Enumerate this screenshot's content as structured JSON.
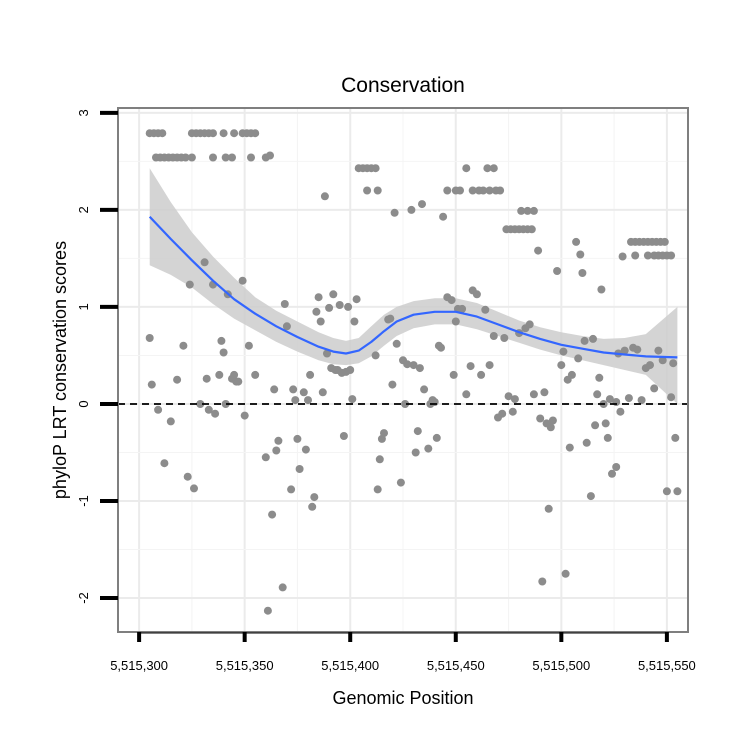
{
  "chart_data": {
    "type": "scatter",
    "title": "Conservation",
    "xlabel": "Genomic Position",
    "ylabel": "phyloP LRT conservation scores",
    "xlim": [
      5515290,
      5515560
    ],
    "ylim": [
      -2.35,
      3.05
    ],
    "x_ticks": [
      5515300,
      5515350,
      5515400,
      5515450,
      5515500,
      5515550
    ],
    "x_tick_labels": [
      "5,515,300",
      "5,515,350",
      "5,515,400",
      "5,515,450",
      "5,515,500",
      "5,515,550"
    ],
    "y_ticks": [
      -2,
      -1,
      0,
      1,
      2,
      3
    ],
    "y_tick_labels": [
      "-2",
      "-1",
      "0",
      "1",
      "2",
      "3"
    ],
    "grid": true,
    "reference_line": {
      "y": 0,
      "style": "dashed",
      "color": "#000000"
    },
    "colors": {
      "points": "#8c8c8c",
      "smooth": "#3366ff",
      "ribbon": "#cccccc",
      "panel_border": "#7f7f7f",
      "grid": "#ebebeb"
    },
    "points": [
      [
        5515305,
        2.79
      ],
      [
        5515307,
        2.79
      ],
      [
        5515309,
        2.79
      ],
      [
        5515311,
        2.79
      ],
      [
        5515308,
        2.54
      ],
      [
        5515310,
        2.54
      ],
      [
        5515312,
        2.54
      ],
      [
        5515314,
        2.54
      ],
      [
        5515316,
        2.54
      ],
      [
        5515318,
        2.54
      ],
      [
        5515320,
        2.54
      ],
      [
        5515322,
        2.54
      ],
      [
        5515325,
        2.54
      ],
      [
        5515325,
        2.79
      ],
      [
        5515327,
        2.79
      ],
      [
        5515329,
        2.79
      ],
      [
        5515331,
        2.79
      ],
      [
        5515333,
        2.79
      ],
      [
        5515335,
        2.79
      ],
      [
        5515340,
        2.79
      ],
      [
        5515345,
        2.79
      ],
      [
        5515349,
        2.79
      ],
      [
        5515351,
        2.79
      ],
      [
        5515353,
        2.79
      ],
      [
        5515355,
        2.79
      ],
      [
        5515335,
        2.54
      ],
      [
        5515341,
        2.54
      ],
      [
        5515344,
        2.54
      ],
      [
        5515353,
        2.54
      ],
      [
        5515360,
        2.54
      ],
      [
        5515362,
        2.56
      ],
      [
        5515305,
        0.68
      ],
      [
        5515306,
        0.2
      ],
      [
        5515309,
        -0.06
      ],
      [
        5515312,
        -0.61
      ],
      [
        5515315,
        -0.18
      ],
      [
        5515318,
        0.25
      ],
      [
        5515321,
        0.6
      ],
      [
        5515323,
        -0.75
      ],
      [
        5515324,
        1.23
      ],
      [
        5515326,
        -0.87
      ],
      [
        5515329,
        0.0
      ],
      [
        5515331,
        1.46
      ],
      [
        5515332,
        0.26
      ],
      [
        5515333,
        -0.06
      ],
      [
        5515335,
        1.23
      ],
      [
        5515336,
        -0.1
      ],
      [
        5515338,
        0.3
      ],
      [
        5515339,
        0.65
      ],
      [
        5515340,
        0.53
      ],
      [
        5515341,
        0.0
      ],
      [
        5515342,
        1.13
      ],
      [
        5515344,
        0.26
      ],
      [
        5515345,
        0.3
      ],
      [
        5515346,
        0.23
      ],
      [
        5515347,
        0.23
      ],
      [
        5515349,
        1.27
      ],
      [
        5515350,
        -0.12
      ],
      [
        5515352,
        0.6
      ],
      [
        5515355,
        0.3
      ],
      [
        5515360,
        -0.55
      ],
      [
        5515361,
        -2.13
      ],
      [
        5515363,
        -1.14
      ],
      [
        5515364,
        0.15
      ],
      [
        5515365,
        -0.48
      ],
      [
        5515366,
        -0.38
      ],
      [
        5515368,
        -1.89
      ],
      [
        5515369,
        1.03
      ],
      [
        5515370,
        0.8
      ],
      [
        5515372,
        -0.88
      ],
      [
        5515373,
        0.15
      ],
      [
        5515374,
        0.04
      ],
      [
        5515375,
        -0.36
      ],
      [
        5515376,
        -0.67
      ],
      [
        5515378,
        0.12
      ],
      [
        5515379,
        -0.47
      ],
      [
        5515380,
        0.04
      ],
      [
        5515381,
        0.3
      ],
      [
        5515382,
        -1.06
      ],
      [
        5515383,
        -0.96
      ],
      [
        5515384,
        0.95
      ],
      [
        5515385,
        1.1
      ],
      [
        5515386,
        0.85
      ],
      [
        5515387,
        0.12
      ],
      [
        5515388,
        2.14
      ],
      [
        5515389,
        0.52
      ],
      [
        5515390,
        0.99
      ],
      [
        5515391,
        0.37
      ],
      [
        5515392,
        1.13
      ],
      [
        5515393,
        0.35
      ],
      [
        5515394,
        0.35
      ],
      [
        5515395,
        1.02
      ],
      [
        5515396,
        0.32
      ],
      [
        5515397,
        -0.33
      ],
      [
        5515398,
        0.33
      ],
      [
        5515399,
        1.0
      ],
      [
        5515400,
        0.35
      ],
      [
        5515401,
        0.05
      ],
      [
        5515402,
        0.85
      ],
      [
        5515403,
        1.08
      ],
      [
        5515404,
        2.43
      ],
      [
        5515406,
        2.43
      ],
      [
        5515408,
        2.43
      ],
      [
        5515410,
        2.43
      ],
      [
        5515412,
        2.43
      ],
      [
        5515408,
        2.2
      ],
      [
        5515413,
        2.2
      ],
      [
        5515412,
        0.5
      ],
      [
        5515413,
        -0.88
      ],
      [
        5515414,
        -0.57
      ],
      [
        5515415,
        -0.36
      ],
      [
        5515416,
        -0.3
      ],
      [
        5515418,
        0.87
      ],
      [
        5515419,
        0.88
      ],
      [
        5515420,
        0.2
      ],
      [
        5515421,
        1.97
      ],
      [
        5515422,
        0.62
      ],
      [
        5515424,
        -0.81
      ],
      [
        5515425,
        0.45
      ],
      [
        5515426,
        0.0
      ],
      [
        5515427,
        0.41
      ],
      [
        5515429,
        2.0
      ],
      [
        5515430,
        0.4
      ],
      [
        5515431,
        -0.5
      ],
      [
        5515432,
        -0.28
      ],
      [
        5515433,
        0.37
      ],
      [
        5515434,
        2.06
      ],
      [
        5515435,
        0.15
      ],
      [
        5515437,
        -0.46
      ],
      [
        5515438,
        0.0
      ],
      [
        5515439,
        0.04
      ],
      [
        5515440,
        0.02
      ],
      [
        5515441,
        -0.35
      ],
      [
        5515442,
        0.6
      ],
      [
        5515443,
        0.58
      ],
      [
        5515444,
        1.93
      ],
      [
        5515446,
        2.2
      ],
      [
        5515450,
        2.2
      ],
      [
        5515452,
        2.2
      ],
      [
        5515455,
        2.43
      ],
      [
        5515458,
        2.2
      ],
      [
        5515461,
        2.2
      ],
      [
        5515463,
        2.2
      ],
      [
        5515465,
        2.43
      ],
      [
        5515466,
        2.2
      ],
      [
        5515468,
        2.43
      ],
      [
        5515469,
        2.2
      ],
      [
        5515471,
        2.2
      ],
      [
        5515446,
        1.1
      ],
      [
        5515448,
        1.07
      ],
      [
        5515449,
        0.3
      ],
      [
        5515450,
        0.85
      ],
      [
        5515451,
        0.98
      ],
      [
        5515453,
        0.98
      ],
      [
        5515455,
        0.1
      ],
      [
        5515457,
        0.39
      ],
      [
        5515458,
        1.17
      ],
      [
        5515460,
        1.13
      ],
      [
        5515462,
        0.3
      ],
      [
        5515464,
        0.97
      ],
      [
        5515466,
        0.4
      ],
      [
        5515468,
        0.7
      ],
      [
        5515470,
        -0.14
      ],
      [
        5515472,
        -0.1
      ],
      [
        5515473,
        0.68
      ],
      [
        5515475,
        0.08
      ],
      [
        5515477,
        -0.08
      ],
      [
        5515478,
        0.05
      ],
      [
        5515474,
        1.8
      ],
      [
        5515476,
        1.8
      ],
      [
        5515478,
        1.8
      ],
      [
        5515480,
        1.8
      ],
      [
        5515482,
        1.8
      ],
      [
        5515484,
        1.8
      ],
      [
        5515486,
        1.8
      ],
      [
        5515481,
        1.99
      ],
      [
        5515484,
        1.99
      ],
      [
        5515487,
        1.99
      ],
      [
        5515480,
        0.73
      ],
      [
        5515483,
        0.78
      ],
      [
        5515485,
        0.82
      ],
      [
        5515487,
        0.1
      ],
      [
        5515489,
        1.58
      ],
      [
        5515490,
        -0.15
      ],
      [
        5515491,
        -1.83
      ],
      [
        5515492,
        0.12
      ],
      [
        5515493,
        -0.2
      ],
      [
        5515494,
        -1.08
      ],
      [
        5515495,
        -0.24
      ],
      [
        5515496,
        -0.17
      ],
      [
        5515498,
        1.37
      ],
      [
        5515500,
        0.4
      ],
      [
        5515501,
        0.54
      ],
      [
        5515502,
        -1.75
      ],
      [
        5515503,
        0.25
      ],
      [
        5515504,
        -0.45
      ],
      [
        5515505,
        0.3
      ],
      [
        5515507,
        1.67
      ],
      [
        5515508,
        0.47
      ],
      [
        5515509,
        1.54
      ],
      [
        5515510,
        1.35
      ],
      [
        5515511,
        0.65
      ],
      [
        5515512,
        -0.4
      ],
      [
        5515514,
        -0.95
      ],
      [
        5515515,
        0.67
      ],
      [
        5515516,
        -0.22
      ],
      [
        5515517,
        0.1
      ],
      [
        5515518,
        0.27
      ],
      [
        5515519,
        1.18
      ],
      [
        5515520,
        0.0
      ],
      [
        5515521,
        -0.2
      ],
      [
        5515522,
        -0.35
      ],
      [
        5515523,
        0.05
      ],
      [
        5515524,
        -0.72
      ],
      [
        5515526,
        0.02
      ],
      [
        5515527,
        0.52
      ],
      [
        5515529,
        1.52
      ],
      [
        5515530,
        0.55
      ],
      [
        5515532,
        0.06
      ],
      [
        5515534,
        0.58
      ],
      [
        5515536,
        0.56
      ],
      [
        5515538,
        0.04
      ],
      [
        5515540,
        0.37
      ],
      [
        5515542,
        0.4
      ],
      [
        5515544,
        0.16
      ],
      [
        5515546,
        0.55
      ],
      [
        5515548,
        0.45
      ],
      [
        5515550,
        -0.9
      ],
      [
        5515552,
        0.07
      ],
      [
        5515553,
        0.42
      ],
      [
        5515554,
        -0.35
      ],
      [
        5515555,
        -0.9
      ],
      [
        5515526,
        -0.65
      ],
      [
        5515528,
        -0.08
      ],
      [
        5515533,
        1.67
      ],
      [
        5515535,
        1.67
      ],
      [
        5515537,
        1.67
      ],
      [
        5515539,
        1.67
      ],
      [
        5515541,
        1.67
      ],
      [
        5515543,
        1.67
      ],
      [
        5515545,
        1.67
      ],
      [
        5515547,
        1.67
      ],
      [
        5515549,
        1.67
      ],
      [
        5515535,
        1.53
      ],
      [
        5515541,
        1.53
      ],
      [
        5515544,
        1.53
      ],
      [
        5515546,
        1.53
      ],
      [
        5515548,
        1.53
      ],
      [
        5515550,
        1.53
      ],
      [
        5515552,
        1.53
      ]
    ],
    "smooth": {
      "x": [
        5515305,
        5515315,
        5515325,
        5515335,
        5515345,
        5515355,
        5515365,
        5515375,
        5515385,
        5515392,
        5515398,
        5515404,
        5515410,
        5515416,
        5515422,
        5515430,
        5515440,
        5515450,
        5515460,
        5515470,
        5515480,
        5515490,
        5515500,
        5515510,
        5515520,
        5515530,
        5515540,
        5515555
      ],
      "y": [
        1.93,
        1.7,
        1.48,
        1.27,
        1.08,
        0.93,
        0.8,
        0.69,
        0.59,
        0.54,
        0.52,
        0.55,
        0.64,
        0.75,
        0.85,
        0.92,
        0.95,
        0.95,
        0.9,
        0.82,
        0.74,
        0.67,
        0.61,
        0.57,
        0.53,
        0.51,
        0.49,
        0.48
      ],
      "lower": [
        1.43,
        1.33,
        1.2,
        1.03,
        0.88,
        0.76,
        0.64,
        0.54,
        0.45,
        0.41,
        0.4,
        0.42,
        0.49,
        0.6,
        0.7,
        0.78,
        0.82,
        0.82,
        0.77,
        0.7,
        0.63,
        0.56,
        0.5,
        0.45,
        0.4,
        0.35,
        0.3,
        0.0
      ],
      "upper": [
        2.43,
        2.08,
        1.77,
        1.52,
        1.3,
        1.1,
        0.96,
        0.85,
        0.74,
        0.68,
        0.65,
        0.68,
        0.8,
        0.92,
        1.0,
        1.06,
        1.09,
        1.09,
        1.04,
        0.95,
        0.86,
        0.79,
        0.74,
        0.7,
        0.67,
        0.68,
        0.72,
        1.0
      ]
    }
  }
}
